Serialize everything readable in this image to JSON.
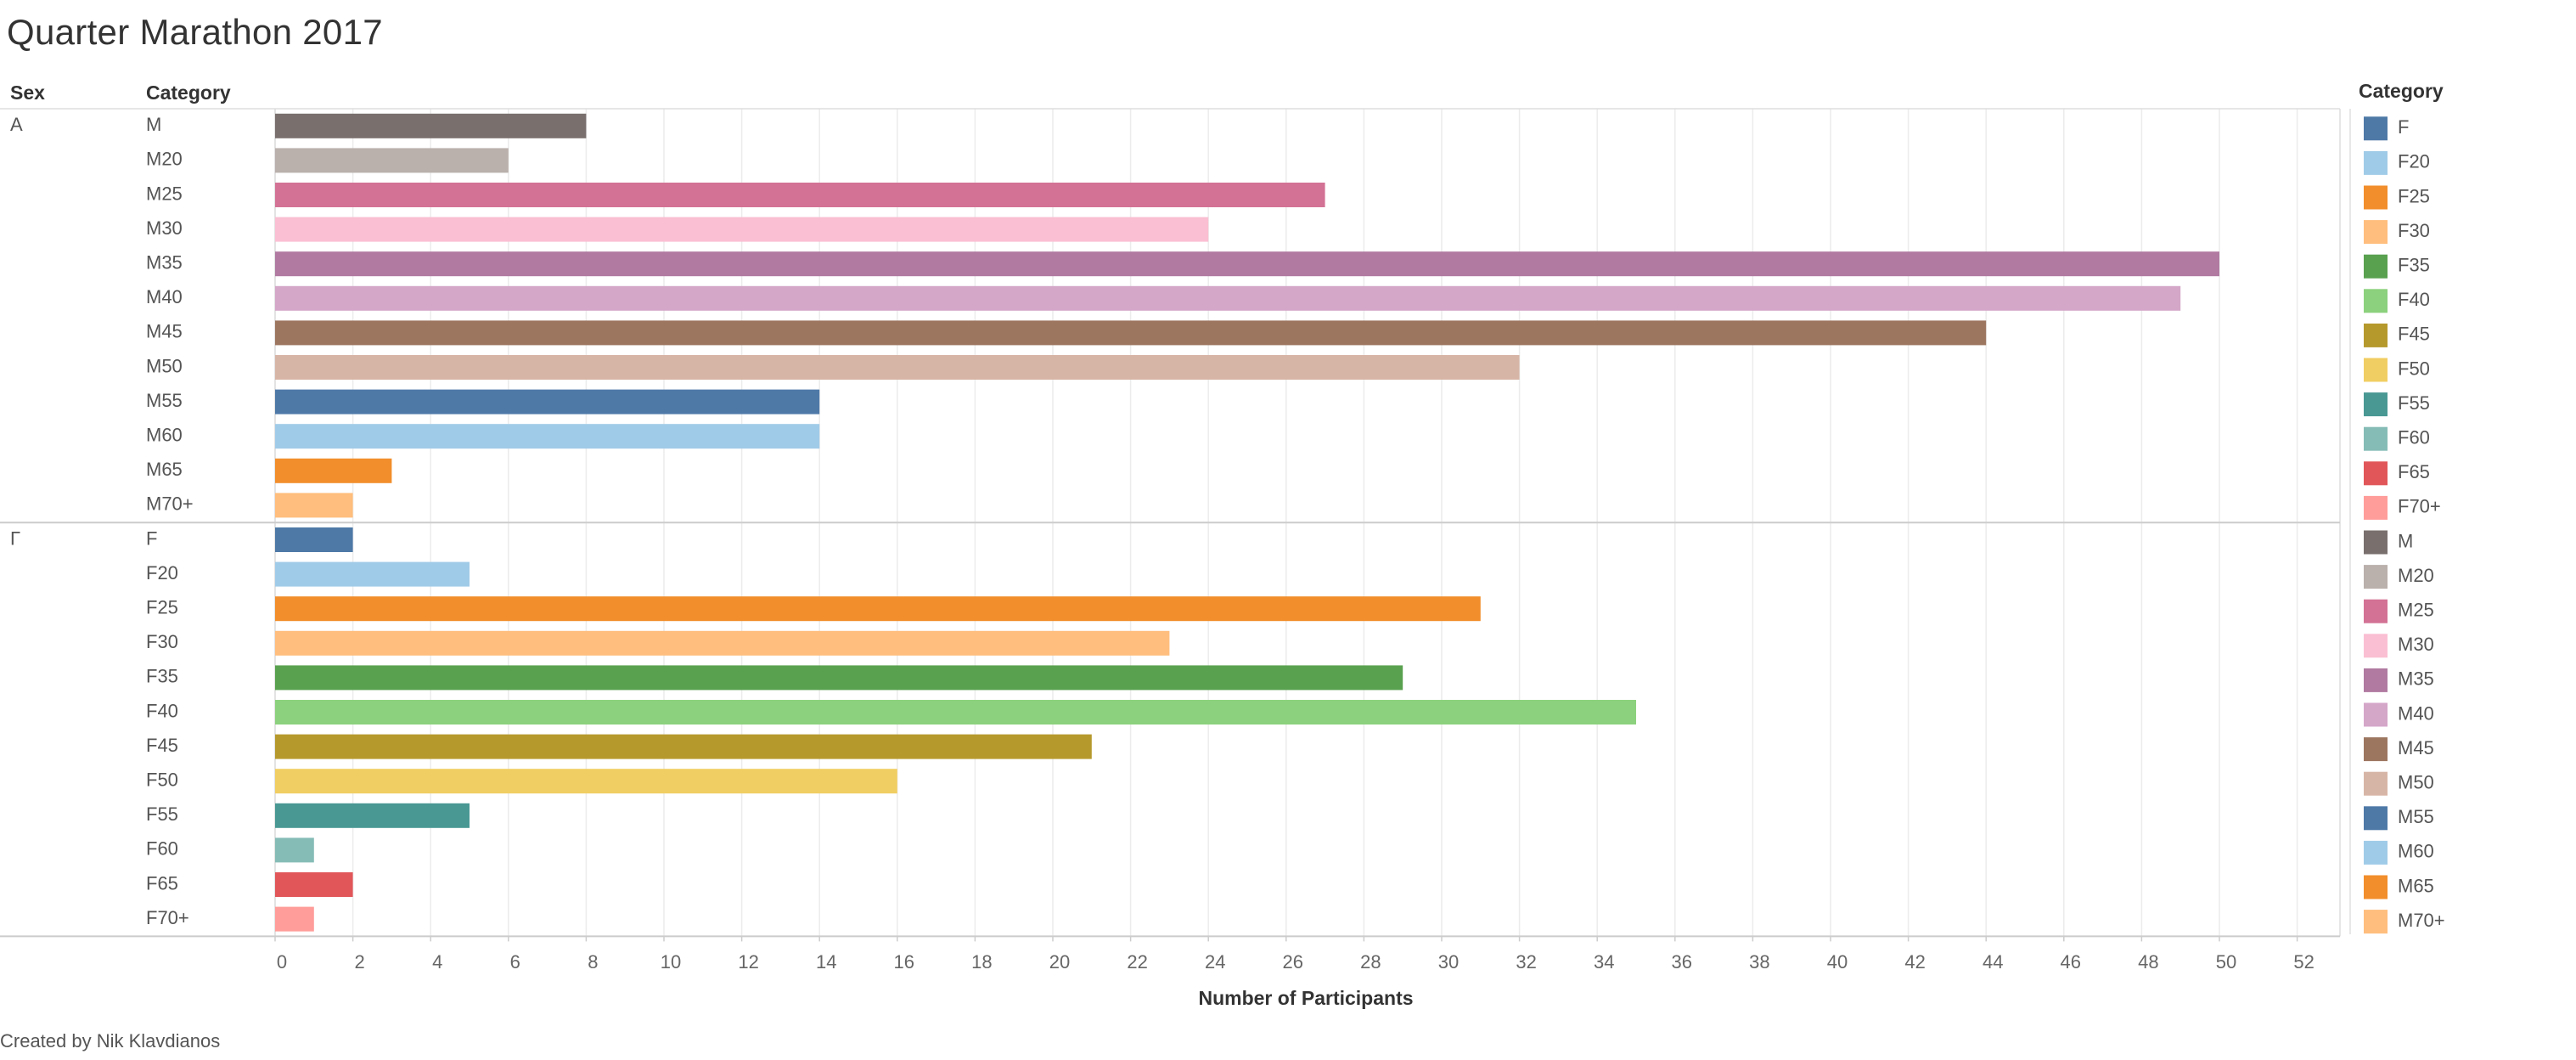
{
  "title": "Quarter Marathon 2017",
  "credit": "Created by Nik Klavdianos",
  "chart_data": {
    "type": "bar",
    "orientation": "horizontal",
    "row_header_sex": "Sex",
    "row_header_category": "Category",
    "xlabel": "Number of Participants",
    "ylabel": "",
    "xlim": [
      0,
      53
    ],
    "x_ticks": [
      0,
      2,
      4,
      6,
      8,
      10,
      12,
      14,
      16,
      18,
      20,
      22,
      24,
      26,
      28,
      30,
      32,
      34,
      36,
      38,
      40,
      42,
      44,
      46,
      48,
      50,
      52
    ],
    "grid": true,
    "groups": [
      {
        "sex": "A",
        "rows": [
          {
            "category": "M",
            "value": 8,
            "color": "#79706E"
          },
          {
            "category": "M20",
            "value": 6,
            "color": "#BAB0AC"
          },
          {
            "category": "M25",
            "value": 27,
            "color": "#D37295"
          },
          {
            "category": "M30",
            "value": 24,
            "color": "#FABFD2"
          },
          {
            "category": "M35",
            "value": 50,
            "color": "#B07AA1"
          },
          {
            "category": "M40",
            "value": 49,
            "color": "#D4A6C8"
          },
          {
            "category": "M45",
            "value": 44,
            "color": "#9D7660"
          },
          {
            "category": "M50",
            "value": 32,
            "color": "#D7B5A6"
          },
          {
            "category": "M55",
            "value": 14,
            "color": "#4E79A7"
          },
          {
            "category": "M60",
            "value": 14,
            "color": "#A0CBE8"
          },
          {
            "category": "M65",
            "value": 3,
            "color": "#F28E2B"
          },
          {
            "category": "M70+",
            "value": 2,
            "color": "#FFBE7D"
          }
        ]
      },
      {
        "sex": "Γ",
        "rows": [
          {
            "category": "F",
            "value": 2,
            "color": "#4E79A7"
          },
          {
            "category": "F20",
            "value": 5,
            "color": "#A0CBE8"
          },
          {
            "category": "F25",
            "value": 31,
            "color": "#F28E2B"
          },
          {
            "category": "F30",
            "value": 23,
            "color": "#FFBE7D"
          },
          {
            "category": "F35",
            "value": 29,
            "color": "#59A14F"
          },
          {
            "category": "F40",
            "value": 35,
            "color": "#8CD17D"
          },
          {
            "category": "F45",
            "value": 21,
            "color": "#B6992D"
          },
          {
            "category": "F50",
            "value": 16,
            "color": "#F1CE63"
          },
          {
            "category": "F55",
            "value": 5,
            "color": "#499894"
          },
          {
            "category": "F60",
            "value": 1,
            "color": "#86BCB6"
          },
          {
            "category": "F65",
            "value": 2,
            "color": "#E15759"
          },
          {
            "category": "F70+",
            "value": 1,
            "color": "#FF9D9A"
          }
        ]
      }
    ],
    "legend": {
      "title": "Category",
      "placement": "right",
      "items": [
        {
          "label": "F",
          "color": "#4E79A7"
        },
        {
          "label": "F20",
          "color": "#A0CBE8"
        },
        {
          "label": "F25",
          "color": "#F28E2B"
        },
        {
          "label": "F30",
          "color": "#FFBE7D"
        },
        {
          "label": "F35",
          "color": "#59A14F"
        },
        {
          "label": "F40",
          "color": "#8CD17D"
        },
        {
          "label": "F45",
          "color": "#B6992D"
        },
        {
          "label": "F50",
          "color": "#F1CE63"
        },
        {
          "label": "F55",
          "color": "#499894"
        },
        {
          "label": "F60",
          "color": "#86BCB6"
        },
        {
          "label": "F65",
          "color": "#E15759"
        },
        {
          "label": "F70+",
          "color": "#FF9D9A"
        },
        {
          "label": "M",
          "color": "#79706E"
        },
        {
          "label": "M20",
          "color": "#BAB0AC"
        },
        {
          "label": "M25",
          "color": "#D37295"
        },
        {
          "label": "M30",
          "color": "#FABFD2"
        },
        {
          "label": "M35",
          "color": "#B07AA1"
        },
        {
          "label": "M40",
          "color": "#D4A6C8"
        },
        {
          "label": "M45",
          "color": "#9D7660"
        },
        {
          "label": "M50",
          "color": "#D7B5A6"
        },
        {
          "label": "M55",
          "color": "#4E79A7"
        },
        {
          "label": "M60",
          "color": "#A0CBE8"
        },
        {
          "label": "M65",
          "color": "#F28E2B"
        },
        {
          "label": "M70+",
          "color": "#FFBE7D"
        }
      ]
    }
  }
}
